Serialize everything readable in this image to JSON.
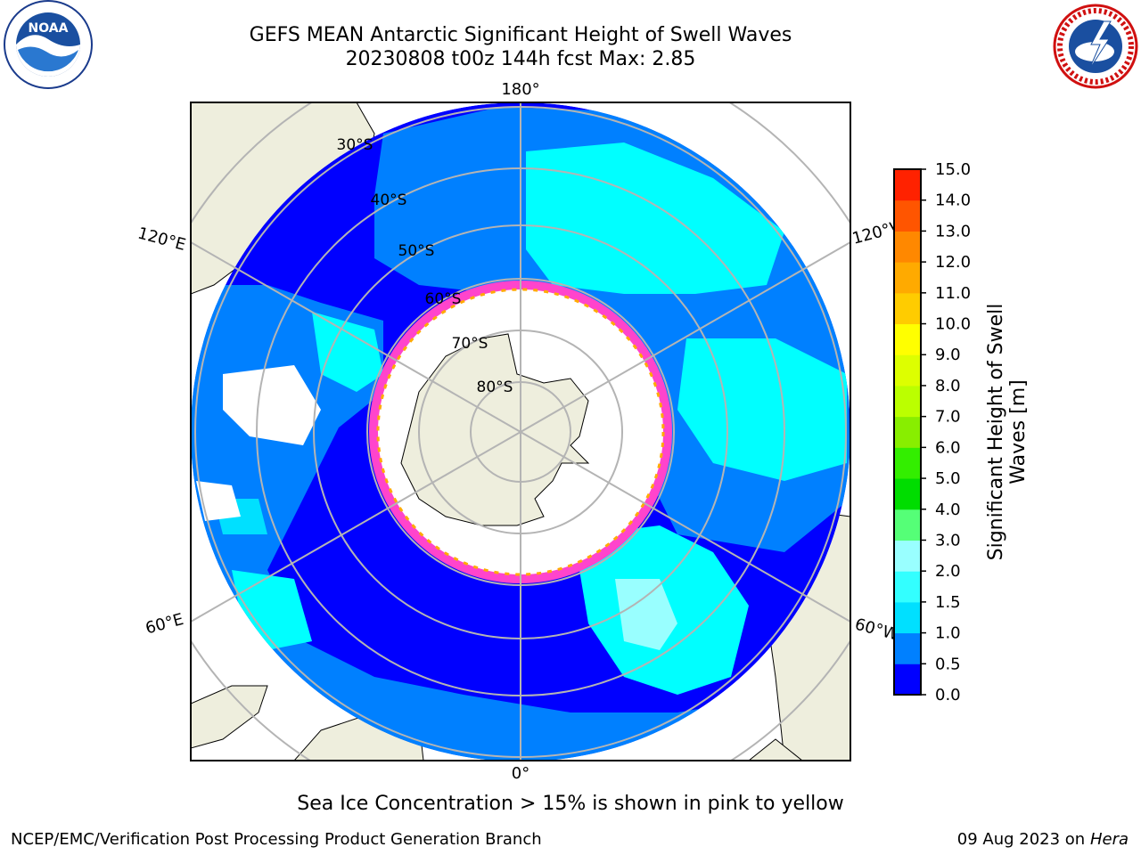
{
  "header": {
    "title_line1": "GEFS MEAN Antarctic Significant Height of Swell Waves",
    "title_line2": "20230808 t00z 144h fcst   Max: 2.85"
  },
  "logos": {
    "left": "noaa-logo",
    "right": "nws-logo"
  },
  "map": {
    "projection": "south-polar-stereographic",
    "meridian_labels": [
      "180°",
      "120°E",
      "120°W",
      "60°E",
      "60°W",
      "0°"
    ],
    "parallel_labels": [
      "30°S",
      "40°S",
      "50°S",
      "60°S",
      "70°S",
      "80°S"
    ],
    "colors": {
      "ocean_low": "#0000ff",
      "ocean_mid": "#0080ff",
      "ocean_high": "#00ffff",
      "ocean_peak": "#55ffff",
      "land": "#eeeedd",
      "ice": "#ffffff",
      "ice_edge": "#ff44cc"
    }
  },
  "colorbar": {
    "title_line1": "Significant Height of Swell",
    "title_line2": "Waves [m]",
    "ticks": [
      "0.0",
      "0.5",
      "1.0",
      "1.5",
      "2.0",
      "3.0",
      "4.0",
      "5.0",
      "6.0",
      "7.0",
      "8.0",
      "9.0",
      "10.0",
      "11.0",
      "12.0",
      "13.0",
      "14.0",
      "15.0"
    ],
    "colors": [
      "#0000ff",
      "#0080ff",
      "#00e0ff",
      "#33ffff",
      "#99ffff",
      "#55ff77",
      "#00dd00",
      "#33ee00",
      "#88ee00",
      "#bbff00",
      "#ddff00",
      "#ffff00",
      "#ffcc00",
      "#ffaa00",
      "#ff8800",
      "#ff5500",
      "#ff2200",
      "#ff0000"
    ]
  },
  "footer": {
    "ice_note": "Sea Ice Concentration > 15% is shown in pink to yellow",
    "credit": "NCEP/EMC/Verification Post Processing Product Generation Branch",
    "date": "09 Aug 2023 on",
    "machine": "Hera"
  }
}
